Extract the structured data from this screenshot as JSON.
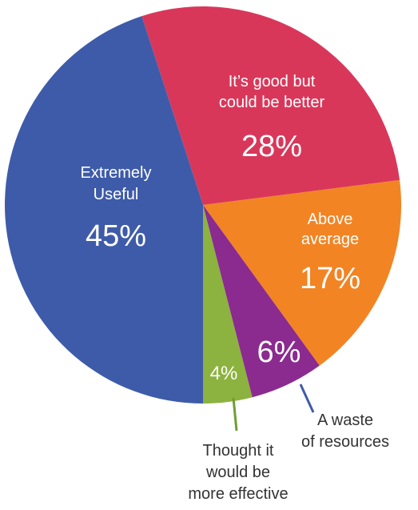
{
  "chart_data": {
    "type": "pie",
    "slices": [
      {
        "label_lines": [
          "It’s good but",
          "could be better"
        ],
        "value": 28,
        "value_label": "28%",
        "color": "#D9375A"
      },
      {
        "label_lines": [
          "Above",
          "average"
        ],
        "value": 17,
        "value_label": "17%",
        "color": "#F28424"
      },
      {
        "label_lines": [
          "A waste",
          "of resources"
        ],
        "value": 6,
        "value_label": "6%",
        "color": "#8B2A8F",
        "outside": true,
        "leader_color": "#3E5BA9"
      },
      {
        "label_lines": [
          "Thought it",
          "would be",
          "more effective"
        ],
        "value": 4,
        "value_label": "4%",
        "color": "#8CB23F",
        "outside": true,
        "leader_color": "#6E9E35"
      },
      {
        "label_lines": [
          "Extremely",
          "Useful"
        ],
        "value": 45,
        "value_label": "45%",
        "color": "#3E5BA9"
      }
    ],
    "start_angle_deg": -18,
    "direction": "clockwise",
    "background": "#ffffff",
    "label_color": "#ffffff",
    "outside_label_color": "#333333"
  }
}
